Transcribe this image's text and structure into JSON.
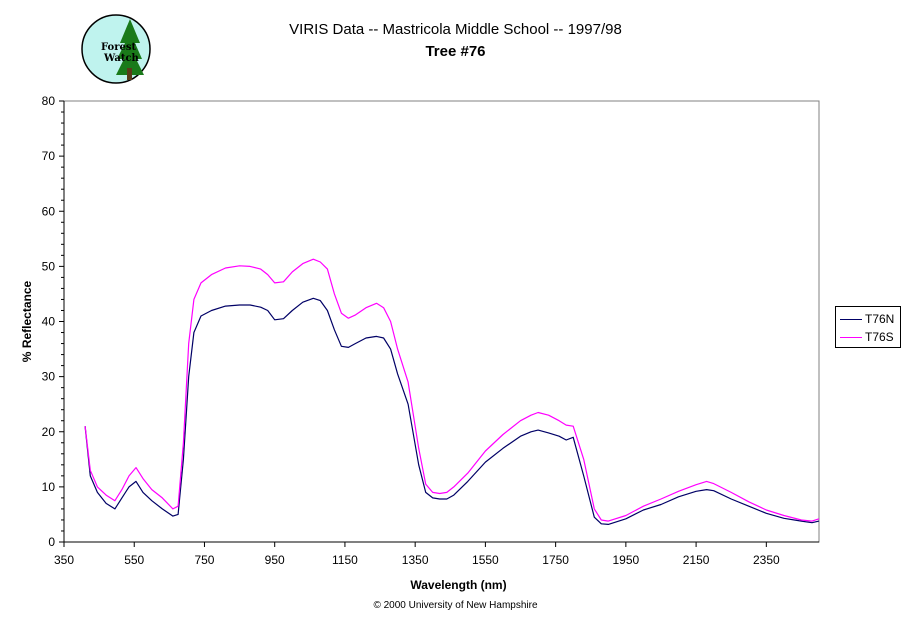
{
  "logo": {
    "line1": "Forest",
    "line2": "Watch"
  },
  "chart_data": {
    "type": "line",
    "title": "VIRIS Data -- Mastricola Middle School -- 1997/98",
    "subtitle": "Tree #76",
    "xlabel": "Wavelength (nm)",
    "ylabel": "% Reflectance",
    "xlim": [
      350,
      2500
    ],
    "ylim": [
      0,
      80
    ],
    "xticks": [
      350,
      550,
      750,
      950,
      1150,
      1350,
      1550,
      1750,
      1950,
      2150,
      2350
    ],
    "yticks": [
      0,
      10,
      20,
      30,
      40,
      50,
      60,
      70,
      80
    ],
    "grid": false,
    "legend_position": "right",
    "series": [
      {
        "name": "T76N",
        "color": "#000066",
        "x": [
          410,
          425,
          445,
          470,
          495,
          515,
          535,
          555,
          575,
          600,
          630,
          660,
          675,
          690,
          705,
          720,
          740,
          770,
          810,
          850,
          880,
          910,
          930,
          950,
          975,
          1000,
          1030,
          1060,
          1080,
          1100,
          1120,
          1140,
          1160,
          1180,
          1210,
          1240,
          1260,
          1280,
          1300,
          1330,
          1360,
          1380,
          1400,
          1420,
          1440,
          1460,
          1500,
          1550,
          1600,
          1650,
          1680,
          1700,
          1730,
          1760,
          1780,
          1800,
          1830,
          1860,
          1880,
          1900,
          1950,
          2000,
          2050,
          2100,
          2150,
          2180,
          2200,
          2250,
          2300,
          2350,
          2400,
          2450,
          2480,
          2500
        ],
        "y": [
          21,
          12,
          9,
          7,
          6,
          8,
          10,
          11,
          9,
          7.5,
          6,
          4.7,
          5,
          15,
          30,
          38,
          41,
          42,
          42.8,
          43,
          43,
          42.6,
          42,
          40.3,
          40.5,
          42,
          43.5,
          44.2,
          43.8,
          42,
          38.5,
          35.5,
          35.3,
          36,
          37,
          37.3,
          37,
          35,
          30.5,
          25,
          14,
          9,
          8,
          7.8,
          7.8,
          8.5,
          11,
          14.5,
          17,
          19.2,
          20,
          20.3,
          19.8,
          19.2,
          18.5,
          19,
          12,
          4.5,
          3.3,
          3.2,
          4.2,
          5.8,
          6.8,
          8.2,
          9.2,
          9.5,
          9.3,
          7.8,
          6.5,
          5.2,
          4.3,
          3.8,
          3.5,
          3.8
        ]
      },
      {
        "name": "T76S",
        "color": "#ff00ff",
        "x": [
          410,
          425,
          445,
          470,
          495,
          515,
          535,
          555,
          575,
          600,
          630,
          660,
          675,
          690,
          705,
          720,
          740,
          770,
          810,
          850,
          880,
          910,
          930,
          950,
          975,
          1000,
          1030,
          1060,
          1080,
          1100,
          1120,
          1140,
          1160,
          1180,
          1210,
          1240,
          1260,
          1280,
          1300,
          1330,
          1360,
          1380,
          1400,
          1420,
          1440,
          1460,
          1500,
          1550,
          1600,
          1650,
          1680,
          1700,
          1730,
          1760,
          1780,
          1800,
          1830,
          1860,
          1880,
          1900,
          1950,
          2000,
          2050,
          2100,
          2150,
          2180,
          2200,
          2250,
          2300,
          2350,
          2400,
          2450,
          2480,
          2500
        ],
        "y": [
          21,
          13,
          10,
          8.5,
          7.5,
          9.5,
          12,
          13.5,
          11.5,
          9.5,
          8,
          6,
          6.5,
          18,
          36,
          44,
          47,
          48.5,
          49.7,
          50.1,
          50,
          49.5,
          48.5,
          47,
          47.2,
          49,
          50.5,
          51.3,
          50.8,
          49.5,
          45,
          41.5,
          40.6,
          41.2,
          42.5,
          43.3,
          42.5,
          40,
          35,
          29,
          17,
          10.5,
          9,
          8.8,
          9,
          10,
          12.5,
          16.5,
          19.5,
          22,
          23,
          23.5,
          23,
          22,
          21.2,
          21,
          15,
          6,
          4,
          3.8,
          4.8,
          6.5,
          7.8,
          9.2,
          10.4,
          11,
          10.6,
          9,
          7.3,
          5.8,
          4.8,
          4,
          3.8,
          4.2
        ]
      }
    ]
  },
  "copyright": "© 2000 University of New Hampshire"
}
